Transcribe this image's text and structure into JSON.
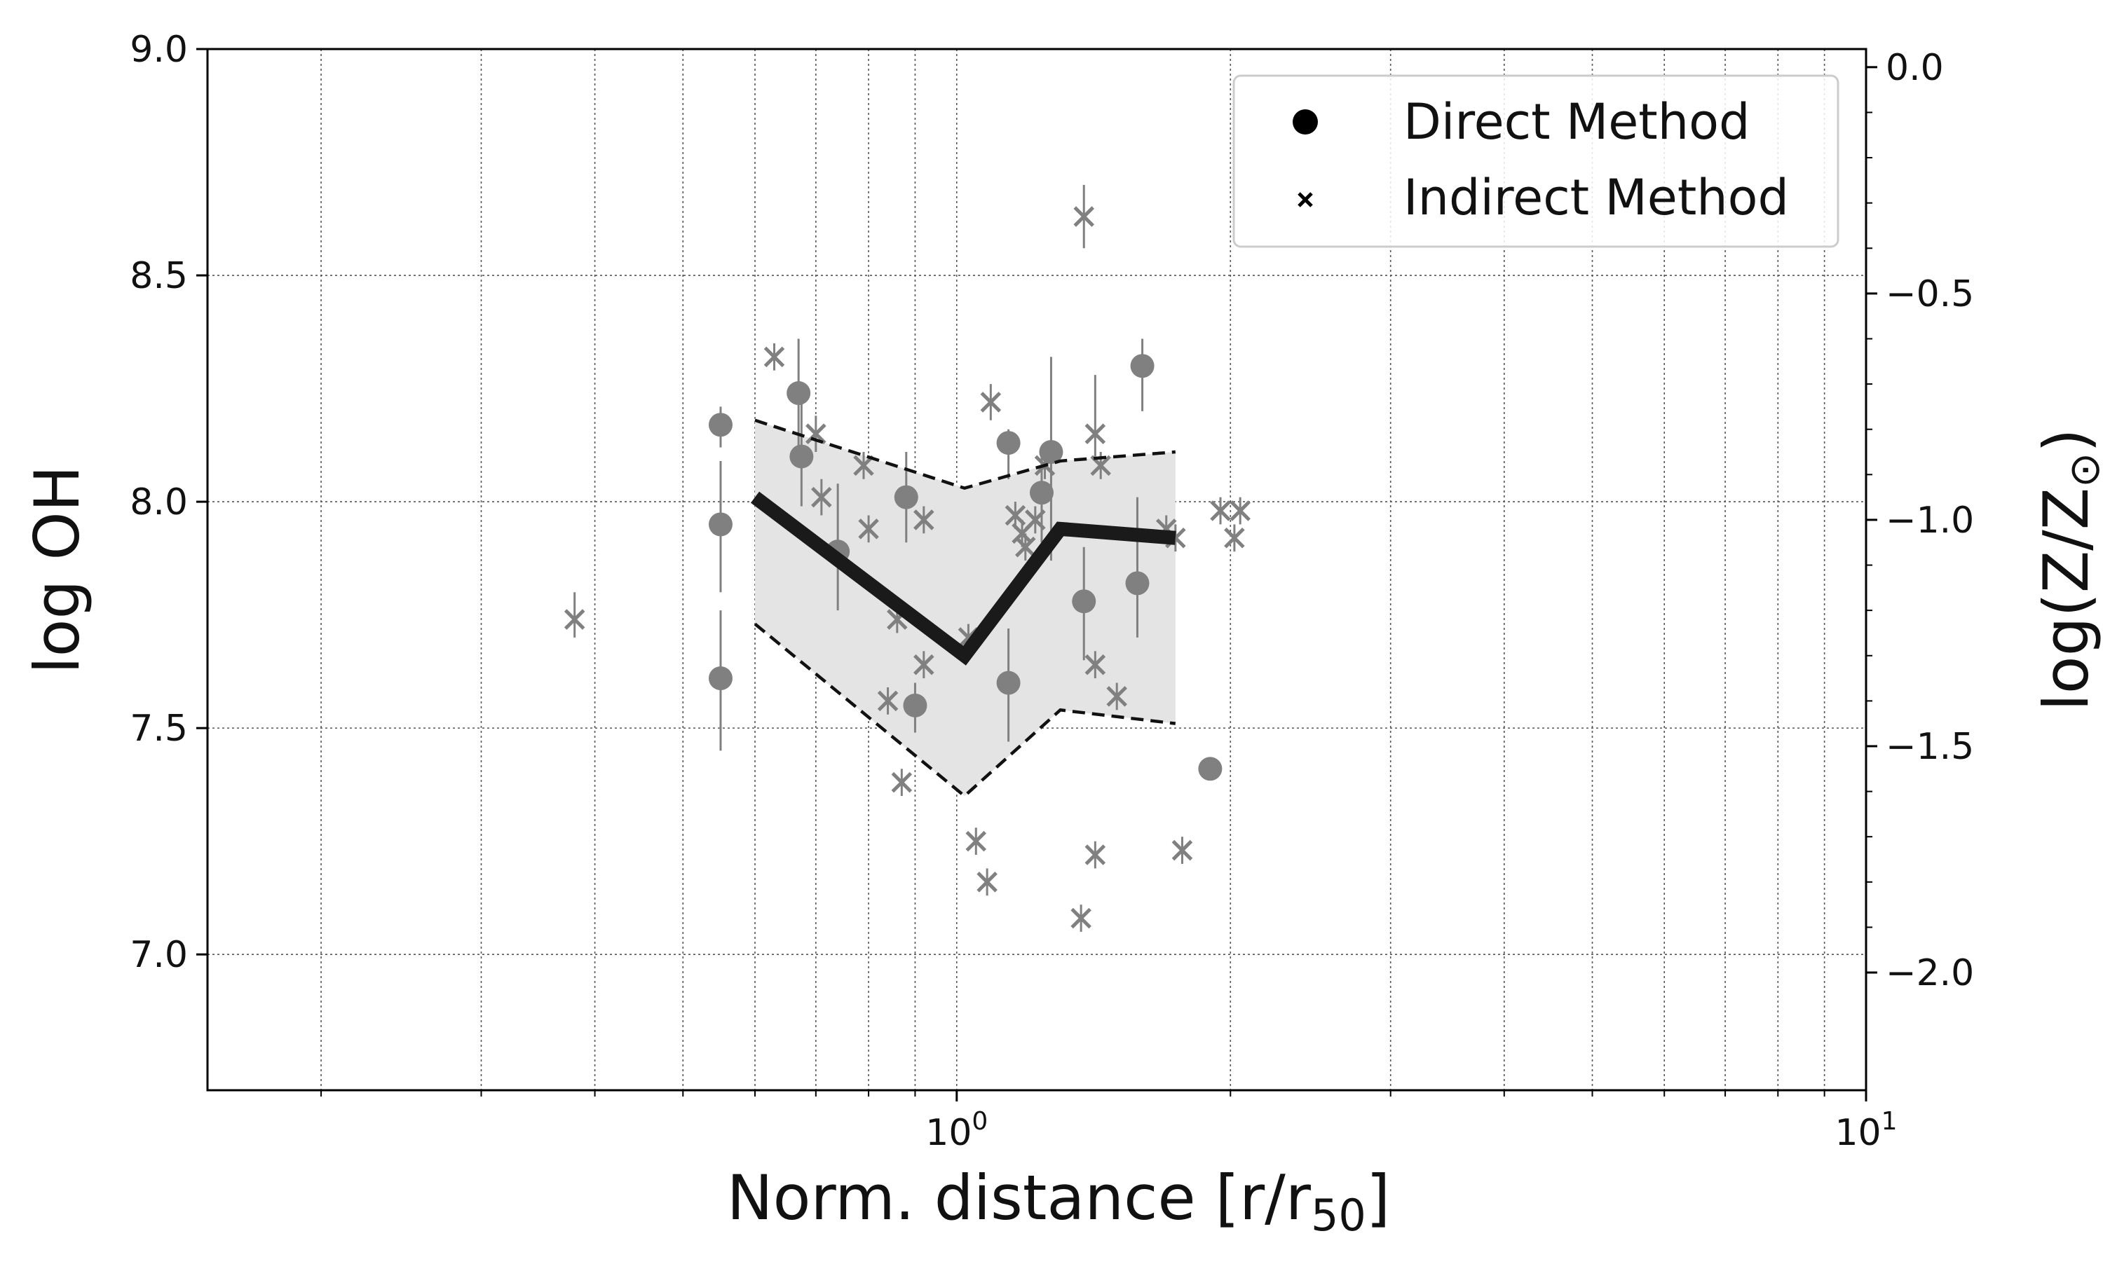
{
  "chart_data": {
    "type": "scatter",
    "x_scale": "log",
    "xlim": [
      0.15,
      10
    ],
    "ylim": [
      6.7,
      9.0
    ],
    "y2lim": [
      -2.0,
      0.0
    ],
    "xlabel_main": "Norm. distance [r/r",
    "xlabel_sub": "50",
    "xlabel_close": "]",
    "ylabel": "log OH",
    "y2label_main": "log(Z/Z",
    "y2label_sub": "⊙",
    "y2label_close": ")",
    "grid": true,
    "legend_position": "top-right",
    "x_tick_labels": [
      {
        "x": 1,
        "base": "10",
        "exp": "0"
      },
      {
        "x": 10,
        "base": "10",
        "exp": "1"
      }
    ],
    "y_ticks": [
      {
        "v": 7.0,
        "label": "7.0"
      },
      {
        "v": 7.5,
        "label": "7.5"
      },
      {
        "v": 8.0,
        "label": "8.0"
      },
      {
        "v": 8.5,
        "label": "8.5"
      },
      {
        "v": 9.0,
        "label": "9.0"
      }
    ],
    "y2_ticks": [
      {
        "v": 0.0,
        "label": "0.0"
      },
      {
        "v": -0.5,
        "label": "−0.5"
      },
      {
        "v": -1.0,
        "label": "−1.0"
      },
      {
        "v": -1.5,
        "label": "−1.5"
      },
      {
        "v": -2.0,
        "label": "−2.0"
      }
    ],
    "y2_at_y": [
      {
        "y": 8.96,
        "y2": 0.0
      },
      {
        "y": 6.96,
        "y2": -2.0
      }
    ],
    "legend": [
      {
        "label": "Direct Method",
        "marker": "circle"
      },
      {
        "label": "Indirect Method",
        "marker": "x"
      }
    ],
    "series": [
      {
        "name": "Direct Method",
        "marker": "circle",
        "color": "#808080",
        "points": [
          {
            "x": 0.55,
            "y": 8.17,
            "lo": 8.12,
            "hi": 8.21
          },
          {
            "x": 0.55,
            "y": 7.95,
            "lo": 7.8,
            "hi": 8.09
          },
          {
            "x": 0.55,
            "y": 7.61,
            "lo": 7.45,
            "hi": 7.76
          },
          {
            "x": 0.67,
            "y": 8.24,
            "lo": 8.11,
            "hi": 8.36
          },
          {
            "x": 0.675,
            "y": 8.1,
            "lo": 7.99,
            "hi": 8.23
          },
          {
            "x": 0.74,
            "y": 7.89,
            "lo": 7.76,
            "hi": 8.04
          },
          {
            "x": 0.88,
            "y": 8.01,
            "lo": 7.91,
            "hi": 8.11
          },
          {
            "x": 0.9,
            "y": 7.55,
            "lo": 7.49,
            "hi": 7.6
          },
          {
            "x": 1.14,
            "y": 8.13,
            "lo": 8.05,
            "hi": 8.16
          },
          {
            "x": 1.14,
            "y": 7.6,
            "lo": 7.47,
            "hi": 7.72
          },
          {
            "x": 1.24,
            "y": 8.02,
            "lo": 7.91,
            "hi": 8.11
          },
          {
            "x": 1.27,
            "y": 8.11,
            "lo": 7.87,
            "hi": 8.32
          },
          {
            "x": 1.38,
            "y": 7.78,
            "lo": 7.65,
            "hi": 7.9
          },
          {
            "x": 1.6,
            "y": 8.3,
            "lo": 8.2,
            "hi": 8.36
          },
          {
            "x": 1.58,
            "y": 7.82,
            "lo": 7.7,
            "hi": 8.01
          },
          {
            "x": 1.9,
            "y": 7.41
          }
        ]
      },
      {
        "name": "Indirect Method",
        "marker": "x",
        "color": "#808080",
        "points": [
          {
            "x": 0.38,
            "y": 7.74,
            "lo": 7.7,
            "hi": 7.8
          },
          {
            "x": 0.63,
            "y": 8.32,
            "lo": 8.29,
            "hi": 8.35
          },
          {
            "x": 0.7,
            "y": 8.15,
            "lo": 8.11,
            "hi": 8.19
          },
          {
            "x": 0.71,
            "y": 8.01,
            "lo": 7.97,
            "hi": 8.05
          },
          {
            "x": 0.79,
            "y": 8.08,
            "lo": 8.05,
            "hi": 8.11
          },
          {
            "x": 0.8,
            "y": 7.94,
            "lo": 7.91,
            "hi": 7.97
          },
          {
            "x": 0.84,
            "y": 7.56,
            "lo": 7.53,
            "hi": 7.59
          },
          {
            "x": 0.86,
            "y": 7.74,
            "lo": 7.71,
            "hi": 7.77
          },
          {
            "x": 0.87,
            "y": 7.38,
            "lo": 7.35,
            "hi": 7.41
          },
          {
            "x": 0.92,
            "y": 7.96,
            "lo": 7.93,
            "hi": 7.99
          },
          {
            "x": 0.92,
            "y": 7.64,
            "lo": 7.61,
            "hi": 7.67
          },
          {
            "x": 1.03,
            "y": 7.7,
            "lo": 7.67,
            "hi": 7.73
          },
          {
            "x": 1.05,
            "y": 7.25,
            "lo": 7.22,
            "hi": 7.28
          },
          {
            "x": 1.09,
            "y": 8.22,
            "lo": 8.18,
            "hi": 8.26
          },
          {
            "x": 1.08,
            "y": 7.16,
            "lo": 7.13,
            "hi": 7.19
          },
          {
            "x": 1.16,
            "y": 7.97,
            "lo": 7.94,
            "hi": 8.0
          },
          {
            "x": 1.18,
            "y": 7.93,
            "lo": 7.9,
            "hi": 7.96
          },
          {
            "x": 1.19,
            "y": 7.9,
            "lo": 7.87,
            "hi": 7.93
          },
          {
            "x": 1.22,
            "y": 7.96,
            "lo": 7.93,
            "hi": 7.99
          },
          {
            "x": 1.25,
            "y": 8.08,
            "lo": 8.05,
            "hi": 8.11
          },
          {
            "x": 1.38,
            "y": 8.63,
            "lo": 8.56,
            "hi": 8.7
          },
          {
            "x": 1.37,
            "y": 7.08,
            "lo": 7.05,
            "hi": 7.11
          },
          {
            "x": 1.42,
            "y": 8.15,
            "lo": 8.1,
            "hi": 8.28
          },
          {
            "x": 1.44,
            "y": 8.08,
            "lo": 8.05,
            "hi": 8.11
          },
          {
            "x": 1.42,
            "y": 7.64,
            "lo": 7.61,
            "hi": 7.67
          },
          {
            "x": 1.42,
            "y": 7.22,
            "lo": 7.19,
            "hi": 7.25
          },
          {
            "x": 1.5,
            "y": 7.57,
            "lo": 7.54,
            "hi": 7.6
          },
          {
            "x": 1.7,
            "y": 7.94,
            "lo": 7.91,
            "hi": 7.97
          },
          {
            "x": 1.74,
            "y": 7.92,
            "lo": 7.89,
            "hi": 7.95
          },
          {
            "x": 1.77,
            "y": 7.23,
            "lo": 7.2,
            "hi": 7.26
          },
          {
            "x": 1.95,
            "y": 7.98,
            "lo": 7.95,
            "hi": 8.01
          },
          {
            "x": 2.02,
            "y": 7.92,
            "lo": 7.89,
            "hi": 7.95
          },
          {
            "x": 2.05,
            "y": 7.98,
            "lo": 7.95,
            "hi": 8.01
          }
        ]
      },
      {
        "name": "median",
        "type": "line",
        "color": "#1a1a1a",
        "x": [
          0.6,
          1.02,
          1.3,
          1.74
        ],
        "y": [
          8.01,
          7.66,
          7.94,
          7.92
        ]
      },
      {
        "name": "upper",
        "type": "line",
        "dash": true,
        "color": "#111111",
        "x": [
          0.6,
          1.02,
          1.3,
          1.74
        ],
        "y": [
          8.18,
          8.03,
          8.09,
          8.11
        ]
      },
      {
        "name": "lower",
        "type": "line",
        "dash": true,
        "color": "#111111",
        "x": [
          0.6,
          1.02,
          1.3,
          1.74
        ],
        "y": [
          7.73,
          7.35,
          7.54,
          7.51
        ]
      }
    ]
  }
}
